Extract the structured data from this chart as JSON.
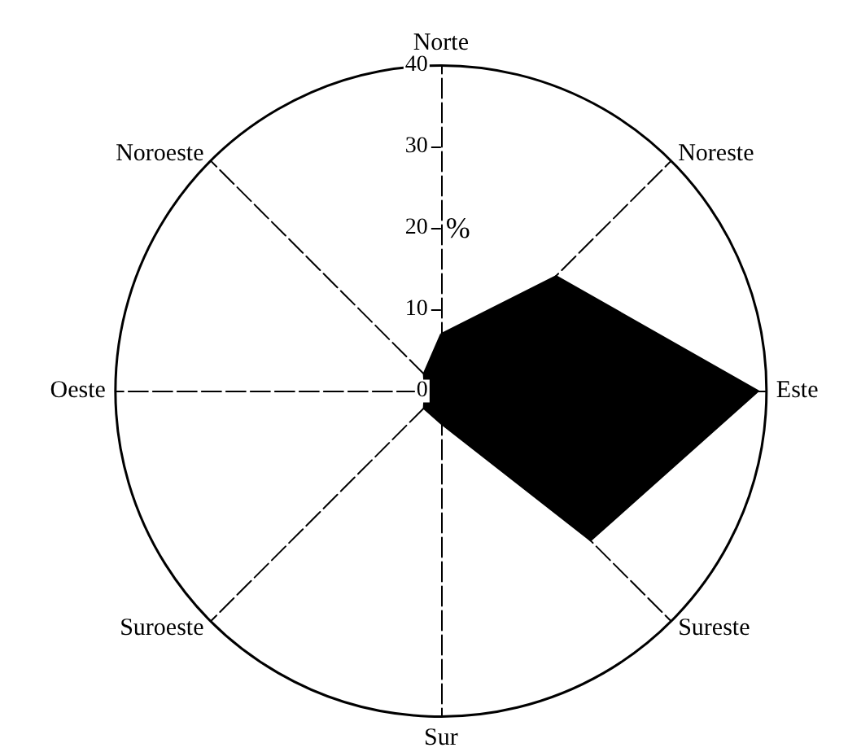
{
  "chart_data": {
    "type": "radar",
    "ylabel": "%",
    "categories": [
      "Norte",
      "Noreste",
      "Este",
      "Sureste",
      "Sur",
      "Suroeste",
      "Oeste",
      "Noroeste"
    ],
    "series": [
      {
        "color": "#000000",
        "values": [
          7,
          20,
          39,
          26,
          4,
          3,
          2,
          3
        ]
      }
    ],
    "ylim": [
      0,
      40
    ],
    "yticks": [
      0,
      10,
      20,
      30,
      40
    ],
    "grid": true
  }
}
